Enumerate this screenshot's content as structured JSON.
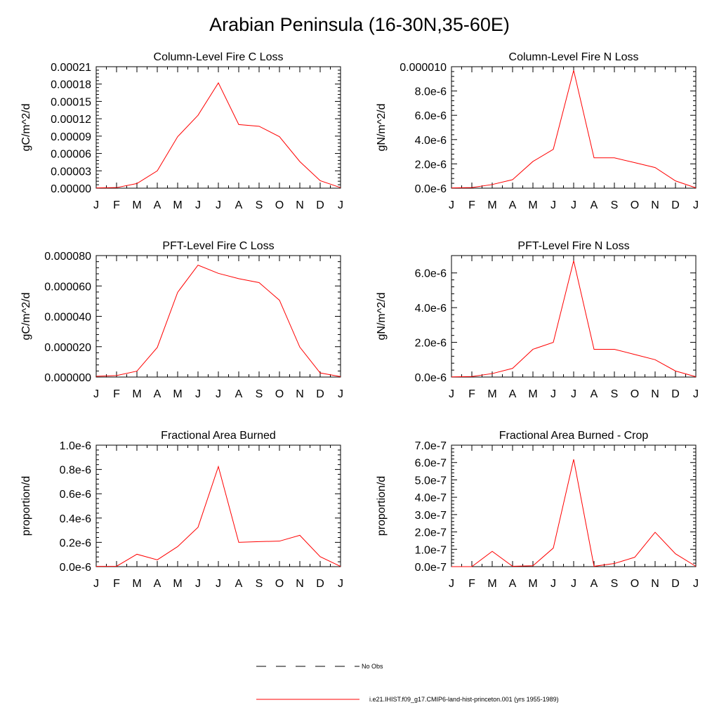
{
  "title": "Arabian Peninsula (16-30N,35-60E)",
  "colors": {
    "model_line": "#ff0000",
    "axis": "#000000",
    "obs_line": "#000000"
  },
  "legend": {
    "obs_label": "No Obs",
    "model_label": "i.e21.IHIST.f09_g17.CMIP6-land-hist-princeton.001 (yrs 1955-1989)"
  },
  "chart_data": [
    {
      "type": "line",
      "title": "Column-Level Fire C Loss",
      "ylabel": "gC/m^2/d",
      "categories": [
        "J",
        "F",
        "M",
        "A",
        "M",
        "J",
        "J",
        "A",
        "S",
        "O",
        "N",
        "D",
        "J"
      ],
      "ylim": [
        0,
        0.00021
      ],
      "yticks": [
        0,
        3e-05,
        6e-05,
        9e-05,
        0.00012,
        0.00015,
        0.00018,
        0.00021
      ],
      "ytick_labels": [
        "0.00000",
        "0.00003",
        "0.00006",
        "0.00009",
        "0.00012",
        "0.00015",
        "0.00018",
        "0.00021"
      ],
      "series": [
        {
          "values": [
            5e-07,
            1e-06,
            8e-06,
            3e-05,
            8.9e-05,
            0.000126,
            0.000182,
            0.00011,
            0.000107,
            8.9e-05,
            4.6e-05,
            1.3e-05,
            1e-06
          ]
        }
      ]
    },
    {
      "type": "line",
      "title": "Column-Level Fire N Loss",
      "ylabel": "gN/m^2/d",
      "categories": [
        "J",
        "F",
        "M",
        "A",
        "M",
        "J",
        "J",
        "A",
        "S",
        "O",
        "N",
        "D",
        "J"
      ],
      "ylim": [
        0,
        1e-05
      ],
      "yticks": [
        0,
        2e-06,
        4e-06,
        6e-06,
        8e-06,
        1e-05
      ],
      "ytick_labels": [
        "0.0e-6",
        "2.0e-6",
        "4.0e-6",
        "6.0e-6",
        "8.0e-6",
        "0.000010"
      ],
      "series": [
        {
          "values": [
            2e-08,
            5e-08,
            3e-07,
            7e-07,
            2.2e-06,
            3.2e-06,
            9.7e-06,
            2.5e-06,
            2.5e-06,
            2.1e-06,
            1.7e-06,
            6e-07,
            3e-08
          ]
        }
      ]
    },
    {
      "type": "line",
      "title": "PFT-Level Fire C Loss",
      "ylabel": "gC/m^2/d",
      "categories": [
        "J",
        "F",
        "M",
        "A",
        "M",
        "J",
        "J",
        "A",
        "S",
        "O",
        "N",
        "D",
        "J"
      ],
      "ylim": [
        0,
        8e-05
      ],
      "yticks": [
        0,
        2e-05,
        4e-05,
        6e-05,
        8e-05
      ],
      "ytick_labels": [
        "0.000000",
        "0.000020",
        "0.000040",
        "0.000060",
        "0.000080"
      ],
      "series": [
        {
          "values": [
            5e-07,
            1e-06,
            3.9e-06,
            1.95e-05,
            5.58e-05,
            7.37e-05,
            6.83e-05,
            6.48e-05,
            6.22e-05,
            5.06e-05,
            1.97e-05,
            2.7e-06,
            3e-07
          ]
        }
      ]
    },
    {
      "type": "line",
      "title": "PFT-Level Fire N Loss",
      "ylabel": "gN/m^2/d",
      "categories": [
        "J",
        "F",
        "M",
        "A",
        "M",
        "J",
        "J",
        "A",
        "S",
        "O",
        "N",
        "D",
        "J"
      ],
      "ylim": [
        0,
        7e-06
      ],
      "yticks": [
        0,
        2e-06,
        4e-06,
        6e-06
      ],
      "ytick_labels": [
        "0.0e-6",
        "2.0e-6",
        "4.0e-6",
        "6.0e-6"
      ],
      "series": [
        {
          "values": [
            1e-08,
            3e-08,
            2e-07,
            5e-07,
            1.6e-06,
            2e-06,
            6.7e-06,
            1.6e-06,
            1.6e-06,
            1.3e-06,
            1e-06,
            3.5e-07,
            2e-08
          ]
        }
      ]
    },
    {
      "type": "line",
      "title": "Fractional Area Burned",
      "ylabel": "proportion/d",
      "categories": [
        "J",
        "F",
        "M",
        "A",
        "M",
        "J",
        "J",
        "A",
        "S",
        "O",
        "N",
        "D",
        "J"
      ],
      "ylim": [
        0,
        1e-06
      ],
      "yticks": [
        0,
        2e-07,
        4e-07,
        6e-07,
        8e-07,
        1e-06
      ],
      "ytick_labels": [
        "0.0e-6",
        "0.2e-6",
        "0.4e-6",
        "0.6e-6",
        "0.8e-6",
        "1.0e-6"
      ],
      "series": [
        {
          "values": [
            2e-09,
            3e-09,
            1.02e-07,
            5.6e-08,
            1.65e-07,
            3.24e-07,
            8.24e-07,
            2e-07,
            2.06e-07,
            2.1e-07,
            2.58e-07,
            8.2e-08,
            2e-09
          ]
        }
      ]
    },
    {
      "type": "line",
      "title": "Fractional Area Burned - Crop",
      "ylabel": "proportion/d",
      "categories": [
        "J",
        "F",
        "M",
        "A",
        "M",
        "J",
        "J",
        "A",
        "S",
        "O",
        "N",
        "D",
        "J"
      ],
      "ylim": [
        0,
        7e-07
      ],
      "yticks": [
        0,
        1e-07,
        2e-07,
        3e-07,
        4e-07,
        5e-07,
        6e-07,
        7e-07
      ],
      "ytick_labels": [
        "0.0e-7",
        "1.0e-7",
        "2.0e-7",
        "3.0e-7",
        "4.0e-7",
        "5.0e-7",
        "6.0e-7",
        "7.0e-7"
      ],
      "series": [
        {
          "values": [
            0,
            0,
            8.8e-08,
            2e-09,
            5e-09,
            1.07e-07,
            6.18e-07,
            2e-09,
            1.8e-08,
            5.4e-08,
            1.98e-07,
            7.4e-08,
            2e-09
          ]
        }
      ]
    }
  ]
}
